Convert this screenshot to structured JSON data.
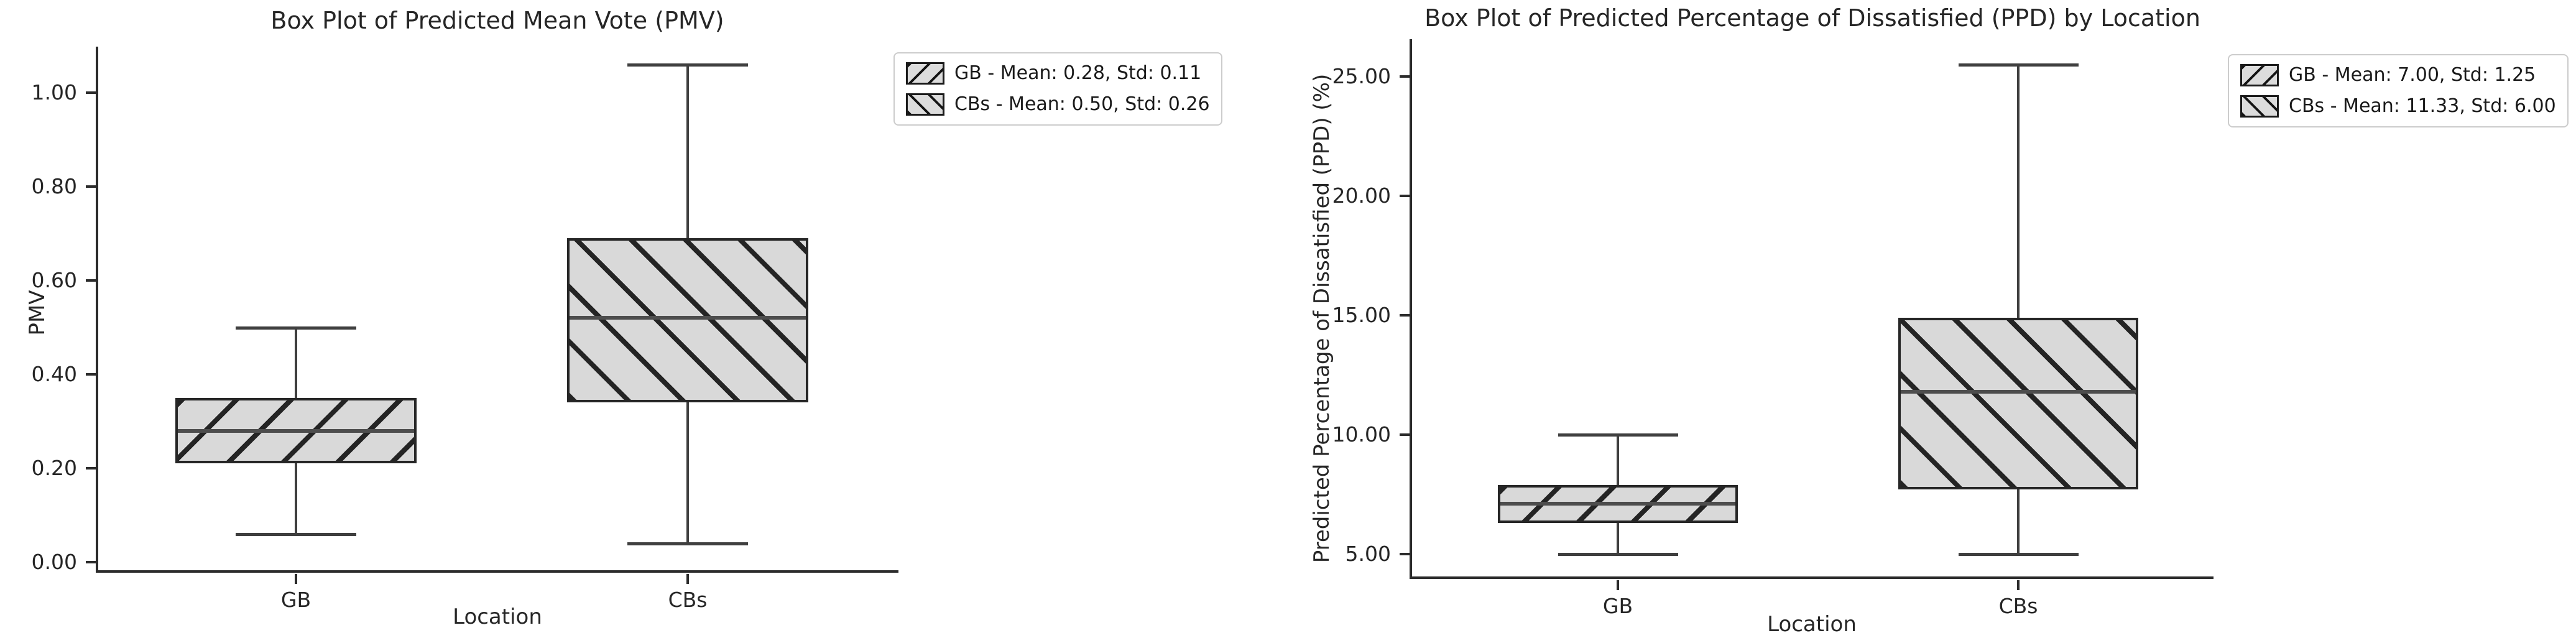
{
  "style": {
    "background": "#ffffff",
    "box_face_color": "#d9d9d9",
    "hatch_color": "#1a1a1a",
    "box_edge_color": "#262626",
    "whisker_color": "#3f3f3f",
    "median_color": "#4d4d4d",
    "legend_border_color": "#cccccc",
    "text_color": "#262626"
  },
  "chart_data": [
    {
      "type": "box",
      "title": "Box Plot of Predicted Mean Vote (PMV)",
      "xlabel": "Location",
      "ylabel": "PMV",
      "categories": [
        "GB",
        "CBs"
      ],
      "ytick_labels": [
        "0.00",
        "0.20",
        "0.40",
        "0.60",
        "0.80",
        "1.00"
      ],
      "ytick_values": [
        0.0,
        0.2,
        0.4,
        0.6,
        0.8,
        1.0
      ],
      "ylim": [
        -0.02,
        1.1
      ],
      "grid": false,
      "legend_position": "upper-right-outside",
      "series": [
        {
          "name": "GB",
          "hatch": "/",
          "whisker_low": 0.06,
          "q1": 0.21,
          "median": 0.28,
          "q3": 0.35,
          "whisker_high": 0.5,
          "mean": 0.28,
          "std": 0.11,
          "legend_label": "GB - Mean: 0.28, Std: 0.11"
        },
        {
          "name": "CBs",
          "hatch": "\\",
          "whisker_low": 0.04,
          "q1": 0.34,
          "median": 0.52,
          "q3": 0.69,
          "whisker_high": 1.06,
          "mean": 0.5,
          "std": 0.26,
          "legend_label": "CBs - Mean: 0.50, Std: 0.26"
        }
      ]
    },
    {
      "type": "box",
      "title": "Box Plot of Predicted Percentage of Dissatisfied (PPD) by Location",
      "xlabel": "Location",
      "ylabel": "Predicted Percentage of Dissatisfied (PPD) (%)",
      "categories": [
        "GB",
        "CBs"
      ],
      "ytick_labels": [
        "5.00",
        "10.00",
        "15.00",
        "20.00",
        "25.00"
      ],
      "ytick_values": [
        5,
        10,
        15,
        20,
        25
      ],
      "ylim": [
        3.95,
        26.6
      ],
      "grid": false,
      "legend_position": "upper-right-outside",
      "series": [
        {
          "name": "GB",
          "hatch": "/",
          "whisker_low": 5.0,
          "q1": 6.3,
          "median": 7.1,
          "q3": 7.9,
          "whisker_high": 10.0,
          "mean": 7.0,
          "std": 1.25,
          "legend_label": "GB - Mean: 7.00, Std: 1.25"
        },
        {
          "name": "CBs",
          "hatch": "\\",
          "whisker_low": 5.0,
          "q1": 7.7,
          "median": 11.8,
          "q3": 14.9,
          "whisker_high": 25.5,
          "mean": 11.33,
          "std": 6.0,
          "legend_label": "CBs - Mean: 11.33, Std: 6.00"
        }
      ]
    }
  ]
}
